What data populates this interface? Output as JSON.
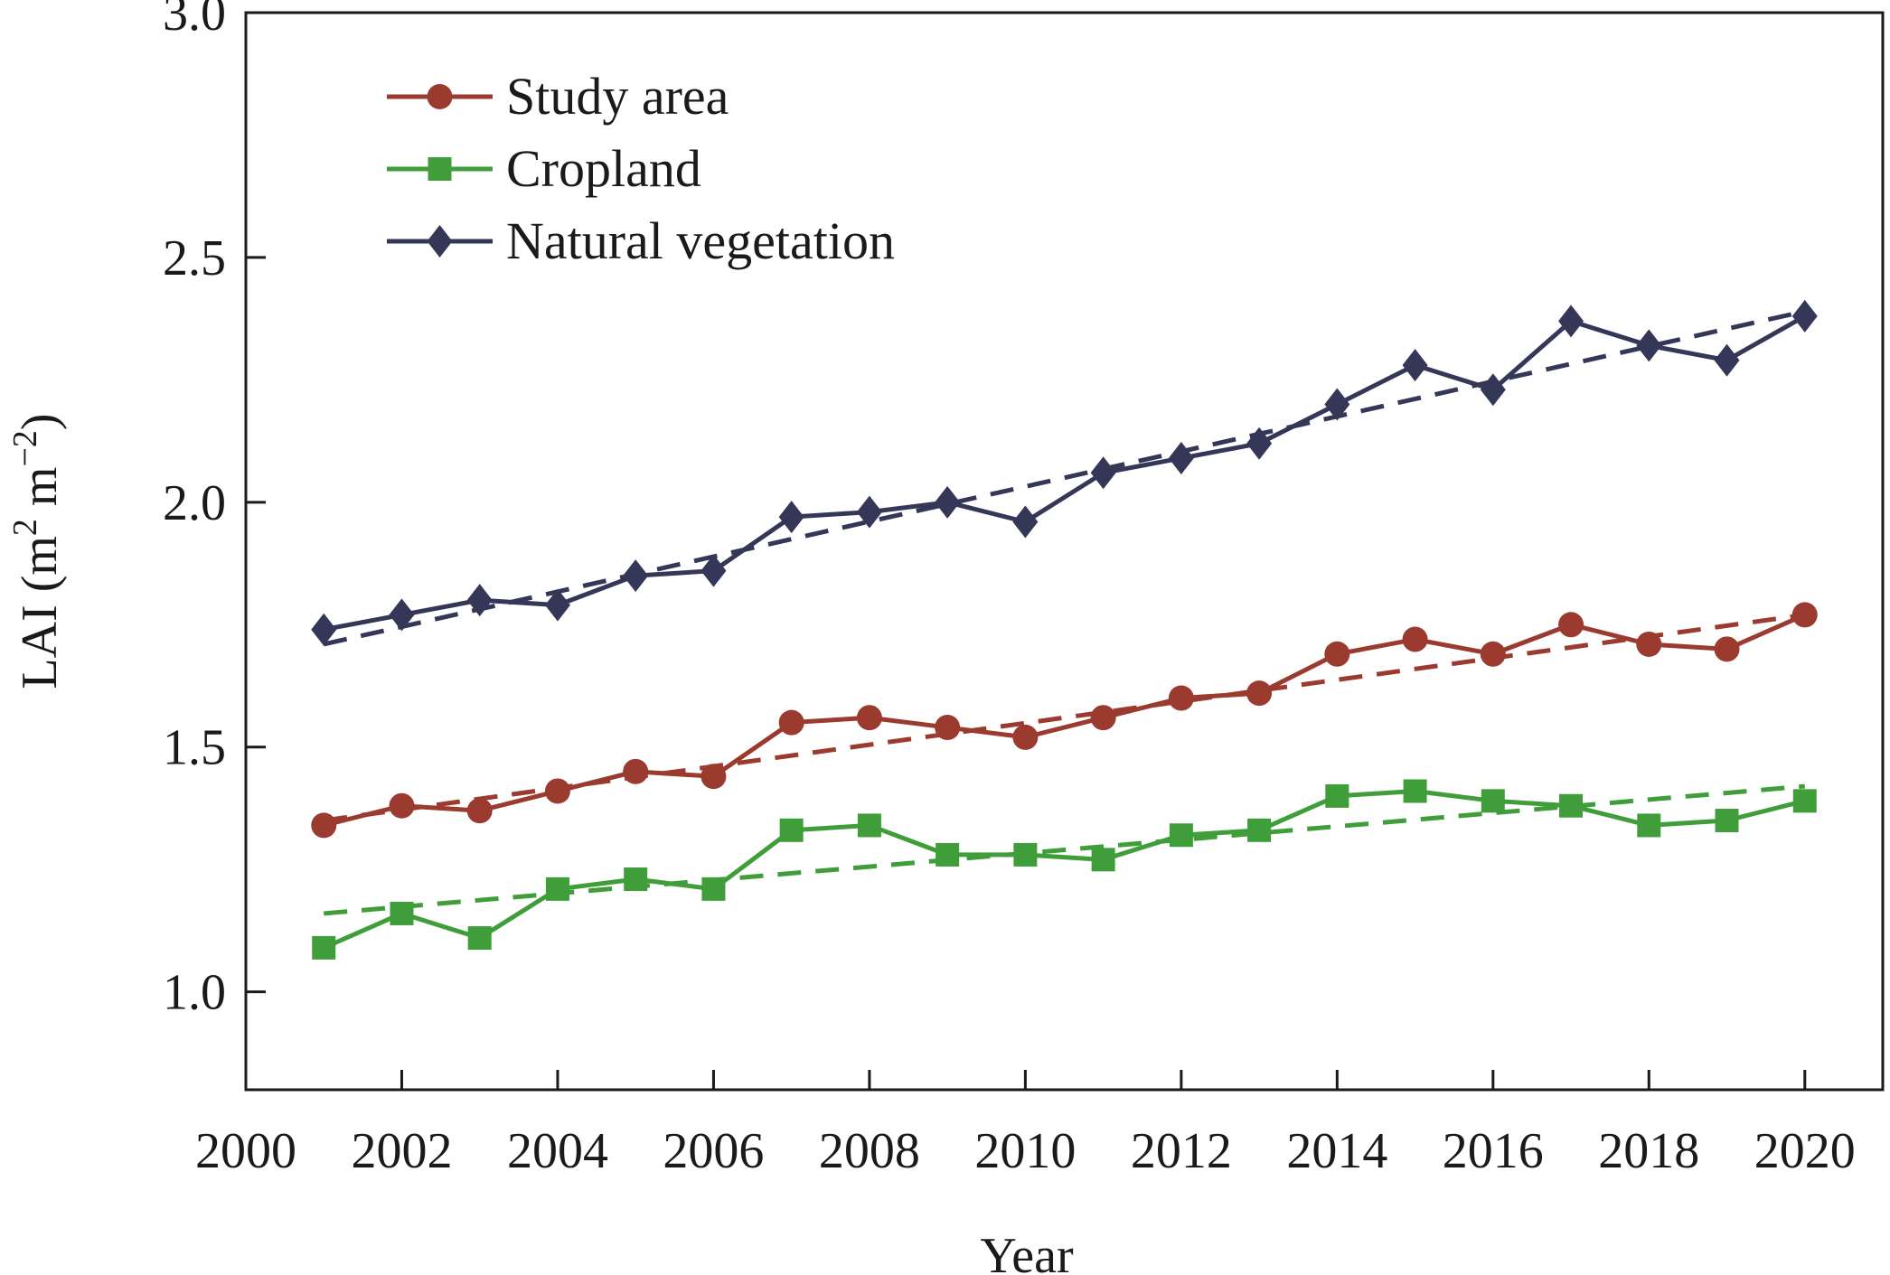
{
  "chart_data": {
    "type": "line",
    "x": [
      2001,
      2002,
      2003,
      2004,
      2005,
      2006,
      2007,
      2008,
      2009,
      2010,
      2011,
      2012,
      2013,
      2014,
      2015,
      2016,
      2017,
      2018,
      2019,
      2020
    ],
    "xlabel": "Year",
    "ylabel": "LAI (m² m⁻²)",
    "ylabel_parts": {
      "base": "LAI (m",
      "sup1": "2",
      "mid": " m",
      "sup2": "−2",
      "end": ")"
    },
    "xlim": [
      2000,
      2021
    ],
    "ylim": [
      0.8,
      3.0
    ],
    "xticks": [
      2000,
      2002,
      2004,
      2006,
      2008,
      2010,
      2012,
      2014,
      2016,
      2018,
      2020
    ],
    "yticks": [
      1.0,
      1.5,
      2.0,
      2.5,
      3.0
    ],
    "ytick_labels": [
      "1.0",
      "1.5",
      "2.0",
      "2.5",
      "3.0"
    ],
    "legend_position": "top-left",
    "grid": false,
    "series": [
      {
        "name": "Study area",
        "marker": "circle",
        "color": "#9b3a2e",
        "values": [
          1.34,
          1.38,
          1.37,
          1.41,
          1.45,
          1.44,
          1.55,
          1.56,
          1.54,
          1.52,
          1.56,
          1.6,
          1.61,
          1.69,
          1.72,
          1.69,
          1.75,
          1.71,
          1.7,
          1.77
        ],
        "trend": [
          1.35,
          1.77
        ]
      },
      {
        "name": "Cropland",
        "marker": "square",
        "color": "#3f9e3a",
        "values": [
          1.09,
          1.16,
          1.11,
          1.21,
          1.23,
          1.21,
          1.33,
          1.34,
          1.28,
          1.28,
          1.27,
          1.32,
          1.33,
          1.4,
          1.41,
          1.39,
          1.38,
          1.34,
          1.35,
          1.39
        ],
        "trend": [
          1.16,
          1.42
        ]
      },
      {
        "name": "Natural vegetation",
        "marker": "diamond",
        "color": "#353758",
        "values": [
          1.74,
          1.77,
          1.8,
          1.79,
          1.85,
          1.86,
          1.97,
          1.98,
          2.0,
          1.96,
          2.06,
          2.09,
          2.12,
          2.2,
          2.28,
          2.23,
          2.37,
          2.32,
          2.29,
          2.38
        ],
        "trend": [
          1.71,
          2.39
        ]
      }
    ]
  }
}
